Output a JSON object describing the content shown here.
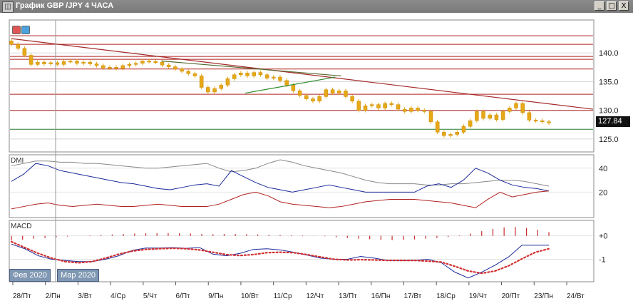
{
  "window": {
    "title": "График GBP /JPY  4 ЧАСА",
    "minimize_glyph": "_",
    "maximize_glyph": "□",
    "close_glyph": "X"
  },
  "chart_data": [
    {
      "type": "candlestick",
      "title": "",
      "x_ticks": [
        "28/Пт",
        "2/Пн",
        "3/Вт",
        "4/Ср",
        "5/Чт",
        "6/Пт",
        "9/Пн",
        "10/Вт",
        "11/Ср",
        "12/Чт",
        "13/Пт",
        "16/Пн",
        "17/Вт",
        "18/Ср",
        "19/Чт",
        "20/Пт",
        "23/Пн",
        "24/Вт"
      ],
      "y_ticks": [
        125,
        130,
        135,
        140
      ],
      "ylim": [
        123,
        145.5
      ],
      "last_price": "127.84",
      "close_series": [
        141.5,
        140.8,
        139.6,
        138.0,
        138.4,
        138.1,
        138.3,
        138.0,
        138.5,
        138.6,
        138.2,
        138.4,
        138.1,
        137.8,
        137.4,
        137.5,
        137.3,
        137.8,
        138.0,
        138.2,
        138.6,
        138.5,
        138.4,
        137.9,
        137.6,
        137.2,
        136.8,
        136.4,
        136.0,
        134.0,
        133.2,
        133.8,
        134.4,
        135.5,
        136.2,
        136.5,
        136.0,
        136.6,
        136.2,
        135.6,
        135.8,
        135.2,
        134.4,
        133.4,
        132.6,
        132.0,
        131.6,
        132.4,
        133.6,
        133.0,
        133.4,
        132.4,
        131.6,
        130.0,
        130.8,
        131.0,
        130.4,
        131.2,
        131.0,
        130.2,
        129.8,
        130.4,
        130.0,
        129.8,
        128.0,
        126.2,
        125.6,
        125.8,
        126.2,
        127.2,
        128.2,
        129.8,
        128.6,
        129.2,
        128.4,
        129.8,
        130.4,
        131.2,
        129.6,
        128.3,
        128.2,
        128.0,
        127.8
      ],
      "horizontal_levels": [
        {
          "value": 143.0,
          "color": "#b22222"
        },
        {
          "value": 141.5,
          "color": "#b22222"
        },
        {
          "value": 139.4,
          "color": "#b22222"
        },
        {
          "value": 138.9,
          "color": "#b22222"
        },
        {
          "value": 137.2,
          "color": "#b22222"
        },
        {
          "value": 132.8,
          "color": "#b22222"
        },
        {
          "value": 130.0,
          "color": "#b22222"
        },
        {
          "value": 126.7,
          "color": "#2e7d32"
        }
      ],
      "trend_lines": [
        {
          "from": [
            0,
            142.5
          ],
          "to": [
            97,
            130.2
          ],
          "color": "#a52a2a"
        },
        {
          "from": [
            25,
            138.6
          ],
          "to": [
            55,
            136.0
          ],
          "color": "#556b2f"
        },
        {
          "from": [
            39,
            133.0
          ],
          "to": [
            54,
            135.8
          ],
          "color": "#2e8b2e"
        }
      ],
      "candle_color": "#e6a817",
      "colors": {
        "grid": "#d8d8d8",
        "axis_text": "#222222"
      }
    },
    {
      "type": "line",
      "title": "DMI",
      "y_ticks": [
        20,
        40
      ],
      "ylim": [
        0,
        50
      ],
      "series": [
        {
          "color": "#888888",
          "values": [
            42,
            44,
            46,
            46,
            45,
            45,
            44,
            44,
            43,
            42,
            41,
            40,
            40,
            41,
            42,
            43,
            44,
            40,
            37,
            38,
            40,
            44,
            47,
            45,
            42,
            40,
            38,
            36,
            33,
            30,
            28,
            27,
            27,
            27,
            26,
            26,
            27,
            27,
            28,
            29,
            30,
            30,
            29,
            27,
            25
          ]
        },
        {
          "color": "#1c2a9a",
          "values": [
            29,
            35,
            44,
            42,
            38,
            36,
            34,
            32,
            30,
            28,
            27,
            25,
            23,
            22,
            24,
            26,
            27,
            25,
            38,
            33,
            28,
            24,
            22,
            20,
            22,
            24,
            26,
            24,
            22,
            20,
            20,
            20,
            20,
            20,
            25,
            27,
            24,
            30,
            40,
            36,
            30,
            26,
            24,
            23,
            21
          ]
        },
        {
          "color": "#b22222",
          "values": [
            6,
            8,
            10,
            11,
            9,
            8,
            9,
            10,
            9,
            8,
            8,
            9,
            10,
            9,
            8,
            8,
            8,
            10,
            14,
            18,
            20,
            17,
            12,
            10,
            9,
            8,
            7,
            8,
            10,
            12,
            13,
            14,
            14,
            14,
            13,
            12,
            11,
            9,
            7,
            14,
            20,
            16,
            18,
            20,
            21
          ]
        }
      ]
    },
    {
      "type": "bar",
      "title": "MACD",
      "y_ticks": [
        "+0",
        "-1"
      ],
      "ylim": [
        -1.9,
        0.6
      ],
      "histogram": [
        -0.2,
        -0.16,
        -0.12,
        -0.09,
        -0.06,
        -0.03,
        0.0,
        0.02,
        0.04,
        0.06,
        0.08,
        0.1,
        0.11,
        0.12,
        0.12,
        0.11,
        0.1,
        0.08,
        0.07,
        0.08,
        0.08,
        0.07,
        0.06,
        0.05,
        0.04,
        0.03,
        0.02,
        0.01,
        -0.02,
        -0.06,
        -0.09,
        -0.12,
        -0.14,
        -0.17,
        -0.18,
        -0.17,
        -0.15,
        -0.12,
        -0.09,
        -0.05,
        0.02,
        0.1,
        0.2,
        0.3,
        0.36,
        0.38,
        0.34,
        0.26,
        0.16
      ],
      "macd_line": [
        -0.35,
        -0.55,
        -0.85,
        -1.0,
        -1.05,
        -1.1,
        -1.1,
        -1.0,
        -0.85,
        -0.62,
        -0.52,
        -0.52,
        -0.5,
        -0.53,
        -0.5,
        -0.78,
        -0.85,
        -0.75,
        -0.58,
        -0.55,
        -0.6,
        -0.7,
        -0.82,
        -0.95,
        -1.0,
        -1.0,
        -0.88,
        -0.95,
        -1.05,
        -1.06,
        -1.05,
        -1.0,
        -1.15,
        -1.55,
        -1.8,
        -1.55,
        -1.25,
        -0.9,
        -0.4,
        -0.4,
        -0.4
      ],
      "signal_line": [
        -0.25,
        -0.5,
        -0.75,
        -0.95,
        -1.1,
        -1.15,
        -1.1,
        -0.95,
        -0.78,
        -0.65,
        -0.58,
        -0.55,
        -0.53,
        -0.55,
        -0.6,
        -0.7,
        -0.8,
        -0.84,
        -0.8,
        -0.72,
        -0.7,
        -0.72,
        -0.8,
        -0.9,
        -1.0,
        -1.03,
        -1.02,
        -1.03,
        -1.05,
        -1.05,
        -1.05,
        -1.08,
        -1.12,
        -1.3,
        -1.5,
        -1.6,
        -1.5,
        -1.28,
        -0.98,
        -0.7,
        -0.55
      ],
      "colors": {
        "histogram": "#c62828",
        "macd": "#1c2a9a",
        "signal": "#d32f2f"
      }
    }
  ],
  "period_labels": [
    "Фев 2020",
    "Мар 2020"
  ],
  "price_tag": "127.84"
}
